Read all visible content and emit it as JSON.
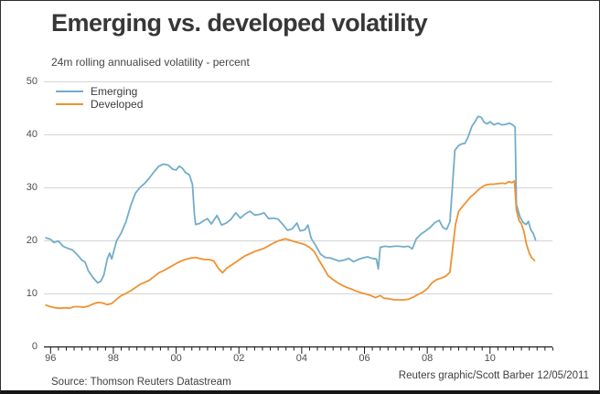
{
  "header": {
    "title": "Emerging vs. developed volatility",
    "subtitle": "24m rolling annualised volatility - percent"
  },
  "footer": {
    "source": "Source: Thomson Reuters Datastream",
    "credit": "Reuters graphic/Scott Barber 12/05/2011"
  },
  "colors": {
    "emerging_line": "#72adc9",
    "developed_line": "#ef9230",
    "gridline": "#d4d4d4",
    "axis": "#1c1c1c",
    "text": "#3d3d3d"
  },
  "chart_data": {
    "type": "line",
    "title": "Emerging vs. developed volatility",
    "subtitle": "24m rolling annualised volatility - percent",
    "ylabel": "percent",
    "ylim": [
      0,
      50
    ],
    "yticks": [
      0,
      10,
      20,
      30,
      40,
      50
    ],
    "xlim": [
      1995.8,
      2012.0
    ],
    "xtick_years": [
      1996,
      1998,
      2000,
      2002,
      2004,
      2006,
      2008,
      2010
    ],
    "xtick_labels": [
      "96",
      "98",
      "00",
      "02",
      "04",
      "06",
      "08",
      "10"
    ],
    "minor_tick_interval_years": 0.25,
    "grid": "horizontal",
    "legend_position": "top-left",
    "series": [
      {
        "name": "Emerging",
        "color": "#72adc9",
        "points": [
          [
            1995.85,
            20.5
          ],
          [
            1996.0,
            20.2
          ],
          [
            1996.1,
            19.6
          ],
          [
            1996.25,
            19.9
          ],
          [
            1996.4,
            18.9
          ],
          [
            1996.55,
            18.5
          ],
          [
            1996.7,
            18.2
          ],
          [
            1996.85,
            17.3
          ],
          [
            1997.0,
            16.3
          ],
          [
            1997.1,
            15.9
          ],
          [
            1997.2,
            14.3
          ],
          [
            1997.35,
            13.0
          ],
          [
            1997.5,
            12.0
          ],
          [
            1997.6,
            12.3
          ],
          [
            1997.7,
            13.5
          ],
          [
            1997.8,
            16.4
          ],
          [
            1997.88,
            17.6
          ],
          [
            1997.95,
            16.5
          ],
          [
            1998.1,
            19.9
          ],
          [
            1998.25,
            21.4
          ],
          [
            1998.4,
            23.5
          ],
          [
            1998.55,
            26.5
          ],
          [
            1998.7,
            28.9
          ],
          [
            1998.85,
            30.0
          ],
          [
            1999.0,
            30.8
          ],
          [
            1999.15,
            31.8
          ],
          [
            1999.3,
            33.0
          ],
          [
            1999.45,
            34.0
          ],
          [
            1999.6,
            34.4
          ],
          [
            1999.75,
            34.2
          ],
          [
            1999.9,
            33.4
          ],
          [
            2000.0,
            33.3
          ],
          [
            2000.1,
            34.0
          ],
          [
            2000.2,
            33.6
          ],
          [
            2000.3,
            32.8
          ],
          [
            2000.42,
            32.4
          ],
          [
            2000.52,
            30.6
          ],
          [
            2000.58,
            25.0
          ],
          [
            2000.62,
            23.0
          ],
          [
            2000.75,
            23.2
          ],
          [
            2000.9,
            23.8
          ],
          [
            2001.0,
            24.1
          ],
          [
            2001.12,
            23.1
          ],
          [
            2001.3,
            24.7
          ],
          [
            2001.45,
            22.9
          ],
          [
            2001.6,
            23.3
          ],
          [
            2001.75,
            24.0
          ],
          [
            2001.9,
            25.2
          ],
          [
            2002.05,
            24.2
          ],
          [
            2002.2,
            25.0
          ],
          [
            2002.35,
            25.5
          ],
          [
            2002.5,
            24.8
          ],
          [
            2002.65,
            24.9
          ],
          [
            2002.8,
            25.2
          ],
          [
            2002.95,
            24.1
          ],
          [
            2003.1,
            24.2
          ],
          [
            2003.25,
            24.0
          ],
          [
            2003.4,
            23.0
          ],
          [
            2003.55,
            21.9
          ],
          [
            2003.7,
            22.2
          ],
          [
            2003.85,
            23.3
          ],
          [
            2003.95,
            21.8
          ],
          [
            2004.1,
            22.0
          ],
          [
            2004.2,
            22.9
          ],
          [
            2004.3,
            20.4
          ],
          [
            2004.45,
            19.0
          ],
          [
            2004.6,
            17.4
          ],
          [
            2004.75,
            16.8
          ],
          [
            2004.9,
            16.7
          ],
          [
            2005.05,
            16.4
          ],
          [
            2005.2,
            16.1
          ],
          [
            2005.35,
            16.3
          ],
          [
            2005.5,
            16.6
          ],
          [
            2005.65,
            16.0
          ],
          [
            2005.8,
            16.4
          ],
          [
            2005.95,
            16.7
          ],
          [
            2006.1,
            16.9
          ],
          [
            2006.25,
            16.6
          ],
          [
            2006.38,
            16.5
          ],
          [
            2006.44,
            14.6
          ],
          [
            2006.5,
            18.7
          ],
          [
            2006.65,
            18.9
          ],
          [
            2006.8,
            18.8
          ],
          [
            2006.95,
            18.9
          ],
          [
            2007.1,
            18.9
          ],
          [
            2007.25,
            18.8
          ],
          [
            2007.4,
            18.9
          ],
          [
            2007.52,
            18.4
          ],
          [
            2007.65,
            20.3
          ],
          [
            2007.8,
            21.2
          ],
          [
            2007.95,
            21.8
          ],
          [
            2008.1,
            22.5
          ],
          [
            2008.25,
            23.4
          ],
          [
            2008.38,
            23.8
          ],
          [
            2008.5,
            22.4
          ],
          [
            2008.62,
            22.1
          ],
          [
            2008.72,
            23.5
          ],
          [
            2008.8,
            30.0
          ],
          [
            2008.88,
            37.0
          ],
          [
            2009.0,
            37.9
          ],
          [
            2009.1,
            38.2
          ],
          [
            2009.2,
            38.3
          ],
          [
            2009.3,
            39.5
          ],
          [
            2009.42,
            41.5
          ],
          [
            2009.52,
            42.4
          ],
          [
            2009.62,
            43.4
          ],
          [
            2009.72,
            43.2
          ],
          [
            2009.82,
            42.2
          ],
          [
            2009.92,
            42.0
          ],
          [
            2010.0,
            42.4
          ],
          [
            2010.12,
            41.8
          ],
          [
            2010.25,
            42.1
          ],
          [
            2010.38,
            41.8
          ],
          [
            2010.5,
            41.9
          ],
          [
            2010.62,
            42.1
          ],
          [
            2010.72,
            41.8
          ],
          [
            2010.8,
            41.4
          ],
          [
            2010.84,
            26.8
          ],
          [
            2010.95,
            24.5
          ],
          [
            2011.05,
            23.4
          ],
          [
            2011.15,
            23.0
          ],
          [
            2011.22,
            23.6
          ],
          [
            2011.3,
            22.0
          ],
          [
            2011.38,
            21.3
          ],
          [
            2011.45,
            20.1
          ]
        ]
      },
      {
        "name": "Developed",
        "color": "#ef9230",
        "points": [
          [
            1995.85,
            7.8
          ],
          [
            1996.0,
            7.5
          ],
          [
            1996.15,
            7.3
          ],
          [
            1996.3,
            7.2
          ],
          [
            1996.45,
            7.3
          ],
          [
            1996.6,
            7.2
          ],
          [
            1996.75,
            7.5
          ],
          [
            1996.9,
            7.5
          ],
          [
            1997.05,
            7.4
          ],
          [
            1997.2,
            7.6
          ],
          [
            1997.35,
            8.0
          ],
          [
            1997.5,
            8.3
          ],
          [
            1997.65,
            8.2
          ],
          [
            1997.8,
            7.9
          ],
          [
            1997.95,
            8.1
          ],
          [
            1998.1,
            8.9
          ],
          [
            1998.25,
            9.6
          ],
          [
            1998.4,
            10.0
          ],
          [
            1998.55,
            10.5
          ],
          [
            1998.7,
            11.1
          ],
          [
            1998.85,
            11.7
          ],
          [
            1999.0,
            12.1
          ],
          [
            1999.15,
            12.5
          ],
          [
            1999.3,
            13.2
          ],
          [
            1999.45,
            13.9
          ],
          [
            1999.6,
            14.3
          ],
          [
            1999.75,
            14.8
          ],
          [
            1999.9,
            15.3
          ],
          [
            2000.05,
            15.8
          ],
          [
            2000.2,
            16.2
          ],
          [
            2000.35,
            16.5
          ],
          [
            2000.5,
            16.7
          ],
          [
            2000.62,
            16.8
          ],
          [
            2000.75,
            16.6
          ],
          [
            2000.9,
            16.4
          ],
          [
            2001.05,
            16.4
          ],
          [
            2001.2,
            16.1
          ],
          [
            2001.35,
            14.7
          ],
          [
            2001.48,
            13.9
          ],
          [
            2001.6,
            14.7
          ],
          [
            2001.75,
            15.3
          ],
          [
            2001.9,
            15.9
          ],
          [
            2002.05,
            16.5
          ],
          [
            2002.2,
            17.1
          ],
          [
            2002.35,
            17.5
          ],
          [
            2002.5,
            17.9
          ],
          [
            2002.65,
            18.2
          ],
          [
            2002.8,
            18.5
          ],
          [
            2002.95,
            19.0
          ],
          [
            2003.1,
            19.5
          ],
          [
            2003.25,
            19.9
          ],
          [
            2003.4,
            20.2
          ],
          [
            2003.5,
            20.3
          ],
          [
            2003.65,
            20.0
          ],
          [
            2003.8,
            19.7
          ],
          [
            2003.95,
            19.5
          ],
          [
            2004.1,
            19.2
          ],
          [
            2004.25,
            18.7
          ],
          [
            2004.4,
            17.9
          ],
          [
            2004.55,
            16.3
          ],
          [
            2004.7,
            14.8
          ],
          [
            2004.85,
            13.3
          ],
          [
            2005.0,
            12.6
          ],
          [
            2005.15,
            12.0
          ],
          [
            2005.3,
            11.5
          ],
          [
            2005.45,
            11.1
          ],
          [
            2005.6,
            10.8
          ],
          [
            2005.75,
            10.4
          ],
          [
            2005.9,
            10.1
          ],
          [
            2006.05,
            9.9
          ],
          [
            2006.2,
            9.6
          ],
          [
            2006.35,
            9.2
          ],
          [
            2006.5,
            9.6
          ],
          [
            2006.62,
            9.1
          ],
          [
            2006.78,
            9.0
          ],
          [
            2006.95,
            8.8
          ],
          [
            2007.1,
            8.8
          ],
          [
            2007.25,
            8.8
          ],
          [
            2007.4,
            8.9
          ],
          [
            2007.55,
            9.3
          ],
          [
            2007.7,
            9.8
          ],
          [
            2007.85,
            10.2
          ],
          [
            2008.0,
            10.9
          ],
          [
            2008.15,
            12.0
          ],
          [
            2008.3,
            12.6
          ],
          [
            2008.45,
            12.9
          ],
          [
            2008.6,
            13.3
          ],
          [
            2008.72,
            14.0
          ],
          [
            2008.8,
            18.0
          ],
          [
            2008.9,
            23.0
          ],
          [
            2009.0,
            25.5
          ],
          [
            2009.12,
            26.4
          ],
          [
            2009.25,
            27.3
          ],
          [
            2009.38,
            28.2
          ],
          [
            2009.5,
            28.8
          ],
          [
            2009.62,
            29.5
          ],
          [
            2009.75,
            30.1
          ],
          [
            2009.88,
            30.5
          ],
          [
            2010.0,
            30.6
          ],
          [
            2010.12,
            30.6
          ],
          [
            2010.25,
            30.7
          ],
          [
            2010.38,
            30.8
          ],
          [
            2010.5,
            30.7
          ],
          [
            2010.6,
            31.1
          ],
          [
            2010.7,
            30.9
          ],
          [
            2010.78,
            31.2
          ],
          [
            2010.84,
            25.8
          ],
          [
            2010.92,
            23.8
          ],
          [
            2011.0,
            23.1
          ],
          [
            2011.08,
            21.7
          ],
          [
            2011.16,
            19.3
          ],
          [
            2011.25,
            17.6
          ],
          [
            2011.33,
            16.7
          ],
          [
            2011.42,
            16.2
          ]
        ]
      }
    ]
  }
}
